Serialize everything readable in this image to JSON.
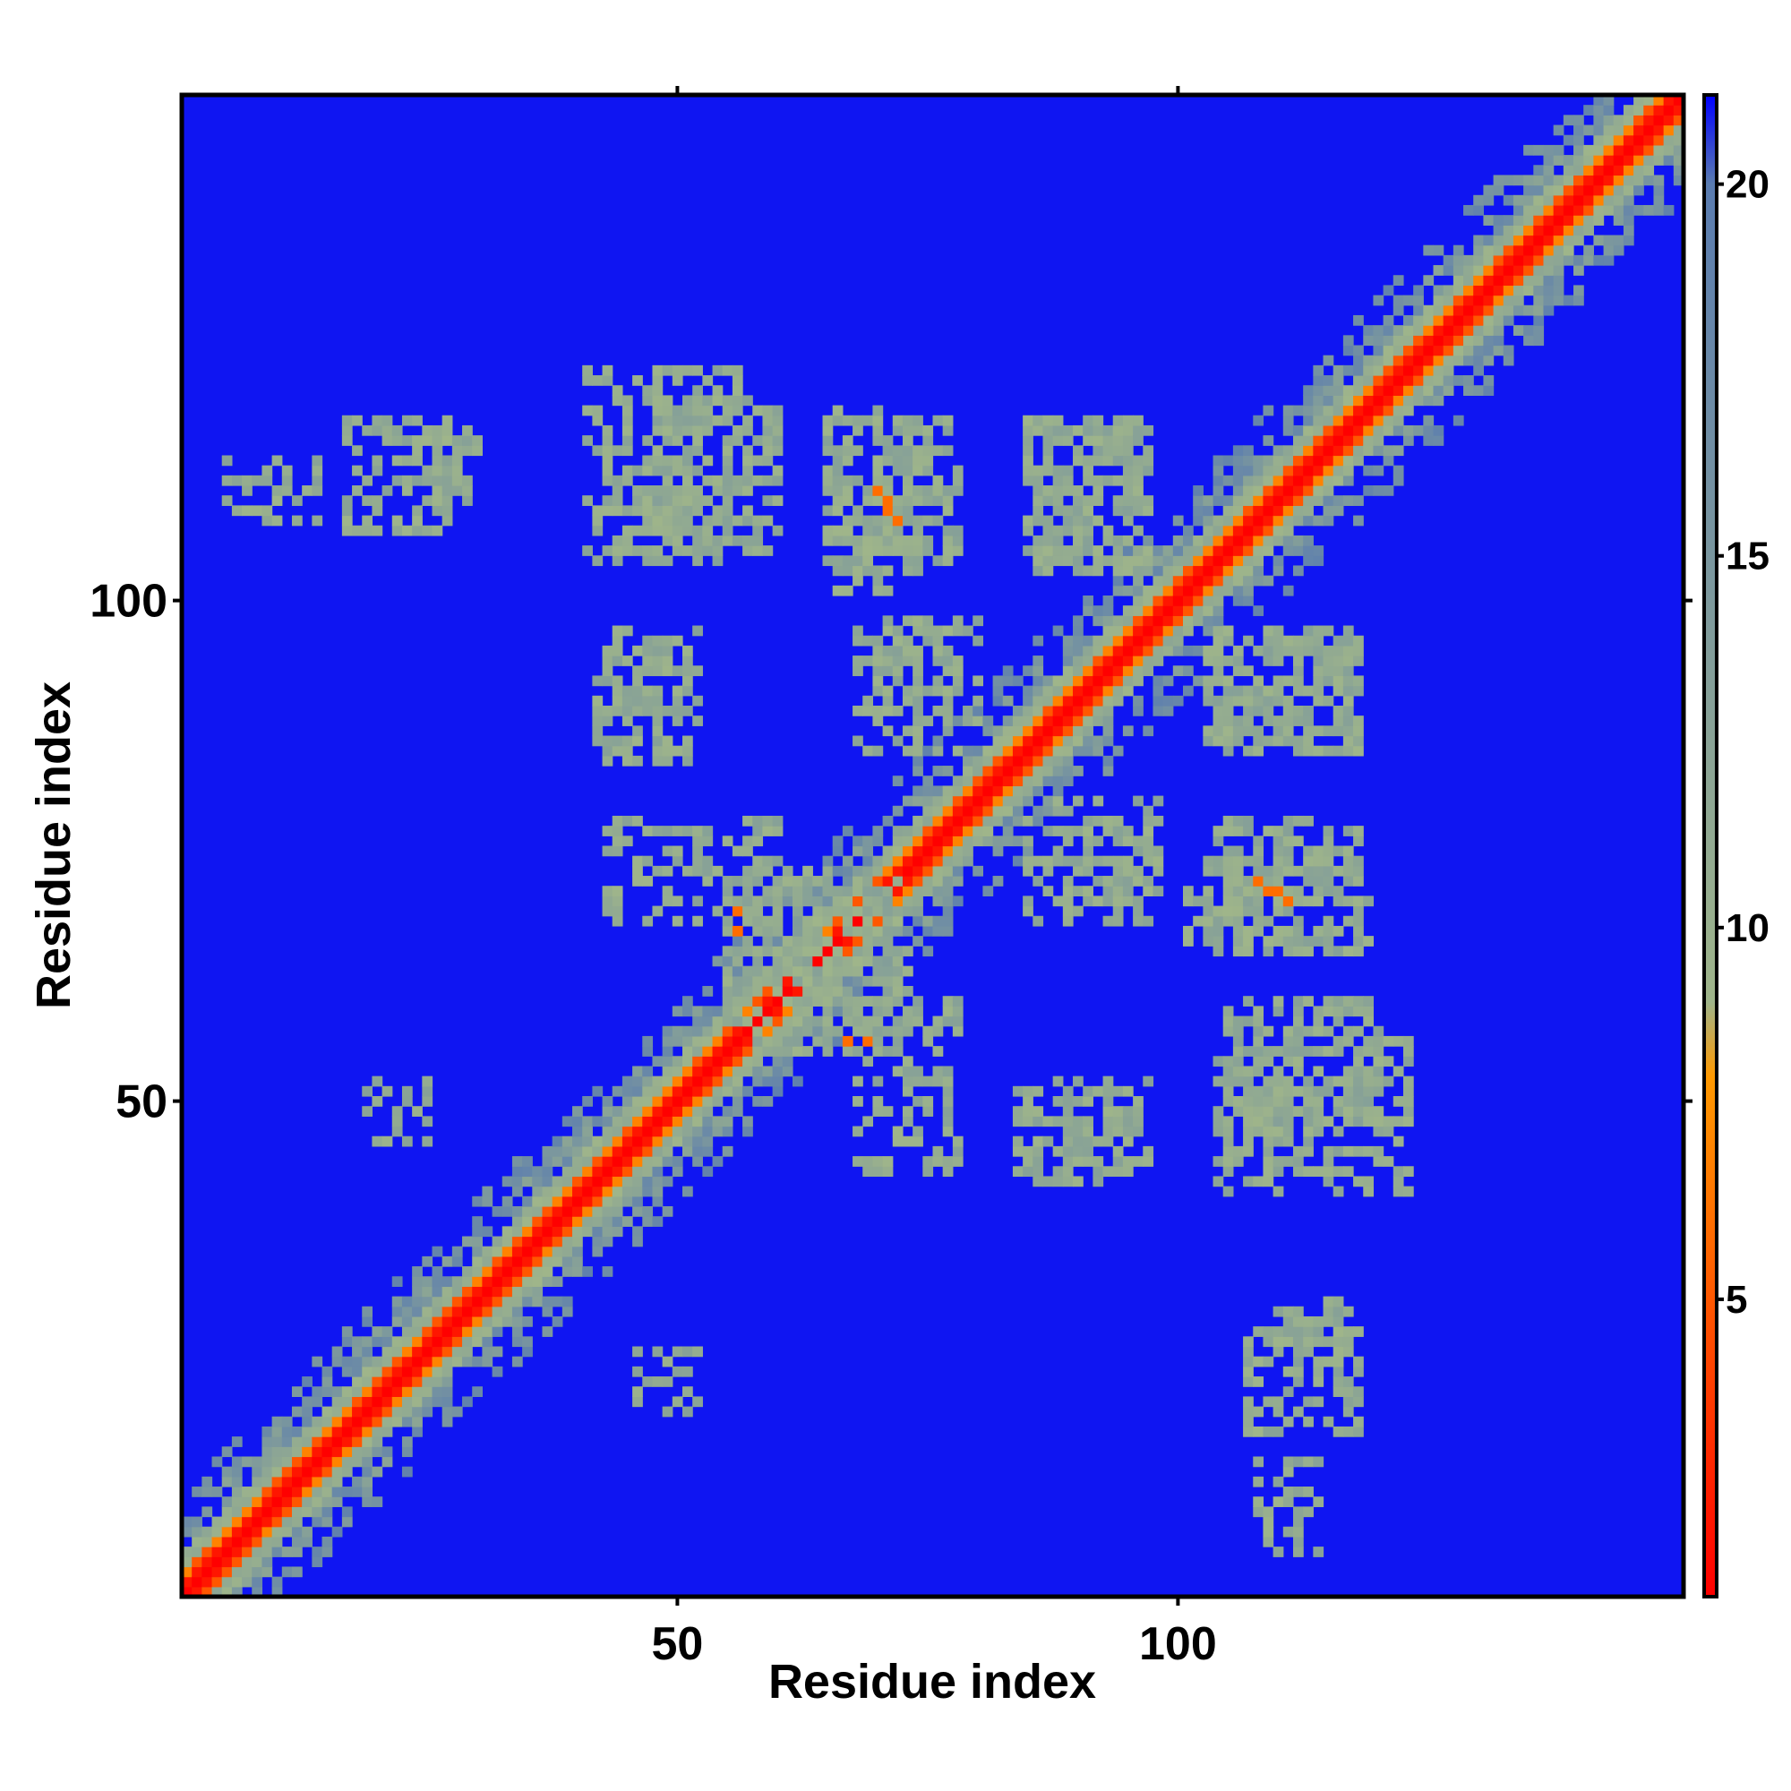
{
  "chart_data": {
    "type": "heatmap",
    "title": "",
    "xlabel": "Residue index",
    "ylabel": "Residue index",
    "xlim": [
      1,
      150
    ],
    "ylim": [
      1,
      150
    ],
    "x_ticks": [
      50,
      100
    ],
    "y_ticks": [
      50,
      100
    ],
    "colorbar": {
      "range": [
        1,
        21.2
      ],
      "ticks": [
        5,
        10,
        15,
        20
      ],
      "colors": [
        "#ff0000",
        "#ff9900",
        "#9fb58a",
        "#5a7cb0",
        "#0000ff"
      ],
      "stops": [
        1,
        8,
        9,
        20,
        21.2
      ]
    },
    "matrix": {
      "size": 150,
      "description_values": "distance map, symmetric",
      "diagonal_value": 1,
      "background_value": 21,
      "contact_regions": [
        {
          "x": [
            48,
            60
          ],
          "y": [
            105,
            120
          ],
          "value": 11
        },
        {
          "x": [
            25,
            30
          ],
          "y": [
            110,
            117
          ],
          "value": 11
        },
        {
          "x": [
            65,
            74
          ],
          "y": [
            101,
            119
          ],
          "value": 11
        },
        {
          "x": [
            85,
            96
          ],
          "y": [
            103,
            118
          ],
          "value": 11
        },
        {
          "x": [
            43,
            52
          ],
          "y": [
            88,
            97
          ],
          "value": 11
        },
        {
          "x": [
            68,
            78
          ],
          "y": [
            85,
            97
          ],
          "value": 11
        },
        {
          "x": [
            103,
            118
          ],
          "y": [
            85,
            97
          ],
          "value": 11
        },
        {
          "x": [
            43,
            60
          ],
          "y": [
            68,
            78
          ],
          "value": 11
        },
        {
          "x": [
            58,
            72
          ],
          "y": [
            55,
            73
          ],
          "value": 11
        },
        {
          "x": [
            88,
            98
          ],
          "y": [
            70,
            80
          ],
          "value": 11
        },
        {
          "x": [
            104,
            118
          ],
          "y": [
            65,
            78
          ],
          "value": 11
        },
        {
          "x": [
            84,
            95
          ],
          "y": [
            42,
            51
          ],
          "value": 11
        },
        {
          "x": [
            104,
            123
          ],
          "y": [
            41,
            56
          ],
          "value": 11
        },
        {
          "x": [
            46,
            52
          ],
          "y": [
            19,
            25
          ],
          "value": 11
        },
        {
          "x": [
            107,
            118
          ],
          "y": [
            17,
            27
          ],
          "value": 11
        },
        {
          "x": [
            108,
            114
          ],
          "y": [
            5,
            14
          ],
          "value": 11
        }
      ],
      "hot_spots": [
        {
          "x": 70,
          "y": 111,
          "value": 6
        },
        {
          "x": 71,
          "y": 109,
          "value": 6
        },
        {
          "x": 108,
          "y": 72,
          "value": 6
        },
        {
          "x": 110,
          "y": 71,
          "value": 6
        },
        {
          "x": 56,
          "y": 69,
          "value": 6
        },
        {
          "x": 67,
          "y": 56,
          "value": 6
        }
      ]
    }
  }
}
